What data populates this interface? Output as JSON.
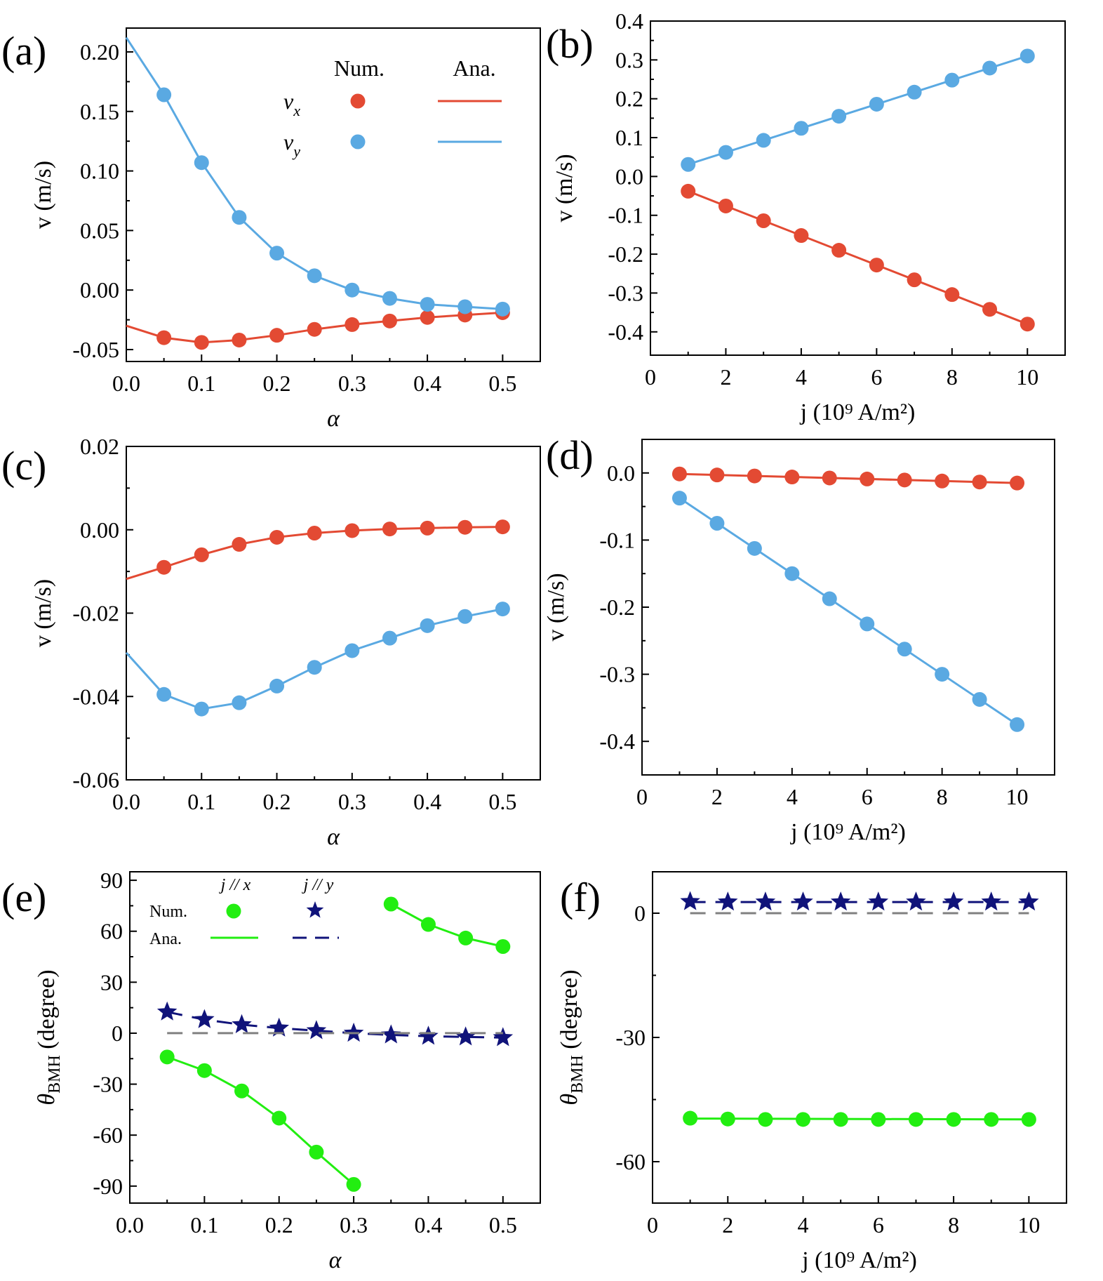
{
  "colors": {
    "vx": "#e34a33",
    "vy": "#5aa9e2",
    "jx": "#22ee11",
    "jy": "#10137a",
    "zero": "#808080"
  },
  "chart_data": [
    {
      "id": "a",
      "panel_label": "(a)",
      "type": "line",
      "xlabel": "α",
      "ylabel": "v (m/s)",
      "xlim": [
        0.0,
        0.55
      ],
      "ylim": [
        -0.06,
        0.22
      ],
      "xticks": [
        0.0,
        0.1,
        0.2,
        0.3,
        0.4,
        0.5
      ],
      "xtick_labels": [
        "0.0",
        "0.1",
        "0.2",
        "0.3",
        "0.4",
        "0.5"
      ],
      "yticks": [
        -0.05,
        0.0,
        0.05,
        0.1,
        0.15,
        0.2
      ],
      "ytick_labels": [
        "-0.05",
        "0.00",
        "0.05",
        "0.10",
        "0.15",
        "0.20"
      ],
      "legend": {
        "position": "top-right",
        "header_num": "Num.",
        "header_ana": "Ana.",
        "rows": [
          {
            "var": "v",
            "sub": "x",
            "color": "vx"
          },
          {
            "var": "v",
            "sub": "y",
            "color": "vy"
          }
        ]
      },
      "series": [
        {
          "name": "vx",
          "color": "vx",
          "points_x": [
            0.05,
            0.1,
            0.15,
            0.2,
            0.25,
            0.3,
            0.35,
            0.4,
            0.45,
            0.5
          ],
          "points_y": [
            -0.04,
            -0.044,
            -0.042,
            -0.038,
            -0.033,
            -0.029,
            -0.026,
            -0.023,
            -0.021,
            -0.019
          ],
          "line_x": [
            0.0,
            0.05,
            0.1,
            0.15,
            0.2,
            0.25,
            0.3,
            0.35,
            0.4,
            0.45,
            0.5
          ],
          "line_y": [
            -0.03,
            -0.04,
            -0.044,
            -0.042,
            -0.038,
            -0.033,
            -0.029,
            -0.026,
            -0.023,
            -0.021,
            -0.019
          ]
        },
        {
          "name": "vy",
          "color": "vy",
          "points_x": [
            0.05,
            0.1,
            0.15,
            0.2,
            0.25,
            0.3,
            0.35,
            0.4,
            0.45,
            0.5
          ],
          "points_y": [
            0.164,
            0.107,
            0.061,
            0.031,
            0.012,
            0.0,
            -0.007,
            -0.012,
            -0.014,
            -0.016
          ],
          "line_x": [
            0.0,
            0.05,
            0.1,
            0.15,
            0.2,
            0.25,
            0.3,
            0.35,
            0.4,
            0.45,
            0.5
          ],
          "line_y": [
            0.212,
            0.164,
            0.107,
            0.061,
            0.031,
            0.012,
            0.0,
            -0.007,
            -0.012,
            -0.014,
            -0.016
          ]
        }
      ]
    },
    {
      "id": "b",
      "panel_label": "(b)",
      "type": "line",
      "xlabel": "j (10⁹ A/m²)",
      "ylabel": "v (m/s)",
      "xlim": [
        0,
        11
      ],
      "ylim": [
        -0.46,
        0.4
      ],
      "xticks": [
        0,
        2,
        4,
        6,
        8,
        10
      ],
      "xtick_labels": [
        "0",
        "2",
        "4",
        "6",
        "8",
        "10"
      ],
      "yticks": [
        -0.4,
        -0.3,
        -0.2,
        -0.1,
        0.0,
        0.1,
        0.2,
        0.3,
        0.4
      ],
      "ytick_labels": [
        "-0.4",
        "-0.3",
        "-0.2",
        "-0.1",
        "0.0",
        "0.1",
        "0.2",
        "0.3",
        "0.4"
      ],
      "series": [
        {
          "name": "vx",
          "color": "vx",
          "points_x": [
            1,
            2,
            3,
            4,
            5,
            6,
            7,
            8,
            9,
            10
          ],
          "points_y": [
            -0.038,
            -0.076,
            -0.114,
            -0.152,
            -0.19,
            -0.228,
            -0.266,
            -0.304,
            -0.342,
            -0.38
          ],
          "line_x": [
            1,
            10
          ],
          "line_y": [
            -0.038,
            -0.38
          ]
        },
        {
          "name": "vy",
          "color": "vy",
          "points_x": [
            1,
            2,
            3,
            4,
            5,
            6,
            7,
            8,
            9,
            10
          ],
          "points_y": [
            0.031,
            0.062,
            0.093,
            0.124,
            0.155,
            0.186,
            0.217,
            0.248,
            0.279,
            0.31
          ],
          "line_x": [
            1,
            10
          ],
          "line_y": [
            0.031,
            0.31
          ]
        }
      ]
    },
    {
      "id": "c",
      "panel_label": "(c)",
      "type": "line",
      "xlabel": "α",
      "ylabel": "v (m/s)",
      "xlim": [
        0.0,
        0.55
      ],
      "ylim": [
        -0.06,
        0.02
      ],
      "xticks": [
        0.0,
        0.1,
        0.2,
        0.3,
        0.4,
        0.5
      ],
      "xtick_labels": [
        "0.0",
        "0.1",
        "0.2",
        "0.3",
        "0.4",
        "0.5"
      ],
      "yticks": [
        -0.06,
        -0.04,
        -0.02,
        0.0,
        0.02
      ],
      "ytick_labels": [
        "-0.06",
        "-0.04",
        "-0.02",
        "0.00",
        "0.02"
      ],
      "series": [
        {
          "name": "vx",
          "color": "vx",
          "points_x": [
            0.05,
            0.1,
            0.15,
            0.2,
            0.25,
            0.3,
            0.35,
            0.4,
            0.45,
            0.5
          ],
          "points_y": [
            -0.009,
            -0.006,
            -0.0035,
            -0.0018,
            -0.0008,
            -0.0002,
            0.0002,
            0.0004,
            0.0006,
            0.0007
          ],
          "line_x": [
            0.0,
            0.05,
            0.1,
            0.15,
            0.2,
            0.25,
            0.3,
            0.35,
            0.4,
            0.45,
            0.5
          ],
          "line_y": [
            -0.0118,
            -0.009,
            -0.006,
            -0.0035,
            -0.0018,
            -0.0008,
            -0.0002,
            0.0002,
            0.0004,
            0.0006,
            0.0007
          ]
        },
        {
          "name": "vy",
          "color": "vy",
          "points_x": [
            0.05,
            0.1,
            0.15,
            0.2,
            0.25,
            0.3,
            0.35,
            0.4,
            0.45,
            0.5
          ],
          "points_y": [
            -0.0395,
            -0.043,
            -0.0415,
            -0.0375,
            -0.033,
            -0.029,
            -0.026,
            -0.023,
            -0.0208,
            -0.019
          ],
          "line_x": [
            0.0,
            0.05,
            0.1,
            0.15,
            0.2,
            0.25,
            0.3,
            0.35,
            0.4,
            0.45,
            0.5
          ],
          "line_y": [
            -0.0295,
            -0.0395,
            -0.043,
            -0.0415,
            -0.0375,
            -0.033,
            -0.029,
            -0.026,
            -0.023,
            -0.0208,
            -0.019
          ]
        }
      ]
    },
    {
      "id": "d",
      "panel_label": "(d)",
      "type": "line",
      "xlabel": "j (10⁹ A/m²)",
      "ylabel": "v (m/s)",
      "xlim": [
        0,
        11
      ],
      "ylim": [
        -0.45,
        0.05
      ],
      "xticks": [
        0,
        2,
        4,
        6,
        8,
        10
      ],
      "xtick_labels": [
        "0",
        "2",
        "4",
        "6",
        "8",
        "10"
      ],
      "yticks": [
        -0.4,
        -0.3,
        -0.2,
        -0.1,
        0.0
      ],
      "ytick_labels": [
        "-0.4",
        "-0.3",
        "-0.2",
        "-0.1",
        "0.0"
      ],
      "series": [
        {
          "name": "vx",
          "color": "vx",
          "points_x": [
            1,
            2,
            3,
            4,
            5,
            6,
            7,
            8,
            9,
            10
          ],
          "points_y": [
            -0.0015,
            -0.003,
            -0.0045,
            -0.006,
            -0.0075,
            -0.009,
            -0.0105,
            -0.012,
            -0.0135,
            -0.015
          ],
          "line_x": [
            1,
            10
          ],
          "line_y": [
            -0.0015,
            -0.015
          ]
        },
        {
          "name": "vy",
          "color": "vy",
          "points_x": [
            1,
            2,
            3,
            4,
            5,
            6,
            7,
            8,
            9,
            10
          ],
          "points_y": [
            -0.0375,
            -0.075,
            -0.1125,
            -0.15,
            -0.1875,
            -0.225,
            -0.2625,
            -0.3,
            -0.3375,
            -0.375
          ],
          "line_x": [
            1,
            10
          ],
          "line_y": [
            -0.0375,
            -0.375
          ]
        }
      ]
    },
    {
      "id": "e",
      "panel_label": "(e)",
      "type": "line",
      "xlabel": "α",
      "ylabel_main": "θ",
      "ylabel_sub": "BMH",
      "ylabel_rest": " (degree)",
      "xlim": [
        0.0,
        0.55
      ],
      "ylim": [
        -100,
        95
      ],
      "xticks": [
        0.0,
        0.1,
        0.2,
        0.3,
        0.4,
        0.5
      ],
      "xtick_labels": [
        "0.0",
        "0.1",
        "0.2",
        "0.3",
        "0.4",
        "0.5"
      ],
      "yticks": [
        -90,
        -60,
        -30,
        0,
        30,
        60,
        90
      ],
      "ytick_labels": [
        "-90",
        "-60",
        "-30",
        "0",
        "30",
        "60",
        "90"
      ],
      "legend": {
        "position": "top-left",
        "col1": "j // x",
        "col2": "j // y",
        "row1": "Num.",
        "row2": "Ana."
      },
      "series": [
        {
          "name": "j//x",
          "color": "jx",
          "marker": "circle",
          "points_x": [
            0.05,
            0.1,
            0.15,
            0.2,
            0.25,
            0.3,
            0.35,
            0.4,
            0.45,
            0.5
          ],
          "points_y": [
            -14,
            -22,
            -34,
            -50,
            -70,
            -89,
            76,
            64,
            56,
            51
          ],
          "line_segments": [
            {
              "x": [
                0.05,
                0.1,
                0.15,
                0.2,
                0.25,
                0.3
              ],
              "y": [
                -14,
                -22,
                -34,
                -50,
                -70,
                -89
              ]
            },
            {
              "x": [
                0.35,
                0.4,
                0.45,
                0.5
              ],
              "y": [
                76,
                64,
                56,
                51
              ]
            }
          ]
        },
        {
          "name": "j//y",
          "color": "jy",
          "marker": "star",
          "points_x": [
            0.05,
            0.1,
            0.15,
            0.2,
            0.25,
            0.3,
            0.35,
            0.4,
            0.45,
            0.5
          ],
          "points_y": [
            12.5,
            8,
            5,
            3,
            1.5,
            0,
            -1,
            -1.8,
            -2.2,
            -2.6
          ],
          "dash_x": [
            0.05,
            0.1,
            0.15,
            0.2,
            0.25,
            0.3,
            0.35,
            0.4,
            0.45,
            0.5
          ],
          "dash_y": [
            12.5,
            8,
            5,
            3,
            1.5,
            0,
            -1,
            -1.8,
            -2.2,
            -2.6
          ]
        },
        {
          "name": "zero",
          "color": "zero",
          "dashed": true,
          "line_x": [
            0.05,
            0.5
          ],
          "line_y": [
            0,
            0
          ]
        }
      ]
    },
    {
      "id": "f",
      "panel_label": "(f)",
      "type": "line",
      "xlabel": "j (10⁹ A/m²)",
      "ylabel_main": "θ",
      "ylabel_sub": "BMH",
      "ylabel_rest": " (degree)",
      "xlim": [
        0,
        11
      ],
      "ylim": [
        -70,
        10
      ],
      "xticks": [
        0,
        2,
        4,
        6,
        8,
        10
      ],
      "xtick_labels": [
        "0",
        "2",
        "4",
        "6",
        "8",
        "10"
      ],
      "yticks": [
        -60,
        -30,
        0
      ],
      "ytick_labels": [
        "-60",
        "-30",
        "0"
      ],
      "series": [
        {
          "name": "j//x",
          "color": "jx",
          "marker": "circle",
          "points_x": [
            1,
            2,
            3,
            4,
            5,
            6,
            7,
            8,
            9,
            10
          ],
          "points_y": [
            -49.5,
            -49.7,
            -49.8,
            -49.8,
            -49.8,
            -49.8,
            -49.8,
            -49.8,
            -49.8,
            -49.8
          ],
          "line_x": [
            1,
            10
          ],
          "line_y": [
            -49.6,
            -49.8
          ]
        },
        {
          "name": "j//y",
          "color": "jy",
          "marker": "star",
          "points_x": [
            1,
            2,
            3,
            4,
            5,
            6,
            7,
            8,
            9,
            10
          ],
          "points_y": [
            2.8,
            2.7,
            2.7,
            2.7,
            2.7,
            2.7,
            2.7,
            2.7,
            2.7,
            2.7
          ],
          "dash_x": [
            1,
            10
          ],
          "dash_y": [
            2.7,
            2.7
          ]
        },
        {
          "name": "zero",
          "color": "zero",
          "dashed": true,
          "line_x": [
            1,
            10
          ],
          "line_y": [
            0,
            0
          ]
        }
      ]
    }
  ]
}
